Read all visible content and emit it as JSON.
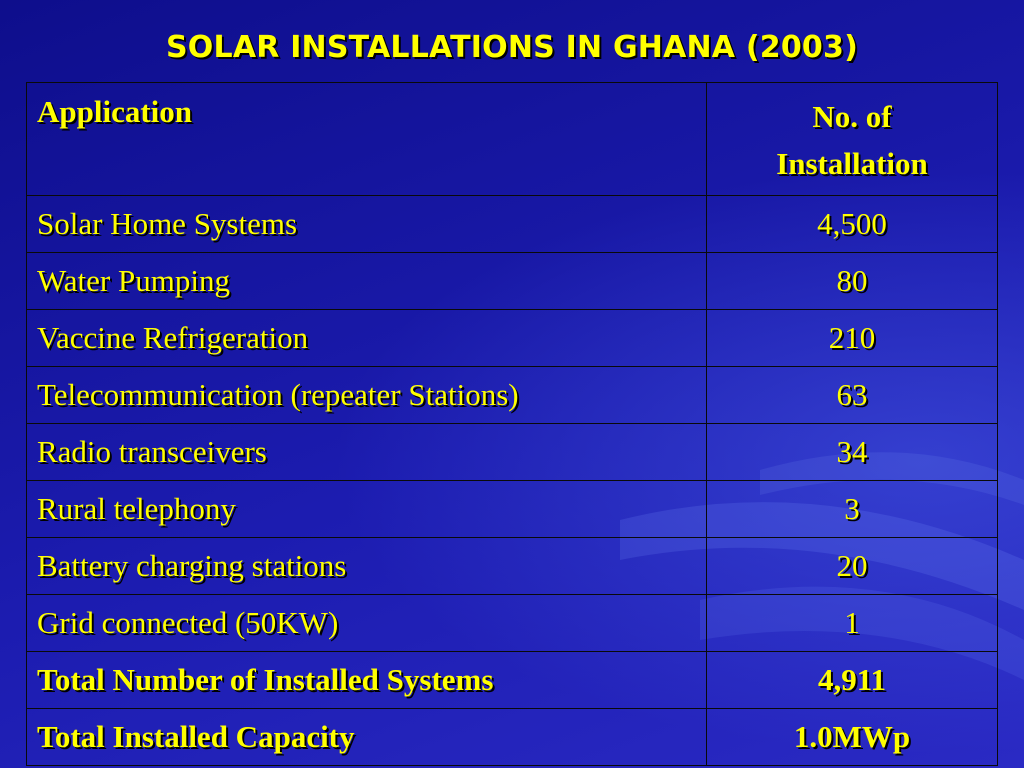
{
  "slide": {
    "title": "SOLAR INSTALLATIONS IN GHANA (2003)"
  },
  "table": {
    "header": {
      "application": "Application",
      "count_line1": "No. of",
      "count_line2": "Installation"
    },
    "rows": [
      {
        "application": "Solar Home Systems",
        "count": "4,500"
      },
      {
        "application": "Water Pumping",
        "count": "80"
      },
      {
        "application": "Vaccine Refrigeration",
        "count": "210"
      },
      {
        "application": "Telecommunication (repeater Stations)",
        "count": "63"
      },
      {
        "application": "Radio transceivers",
        "count": "34"
      },
      {
        "application": "Rural telephony",
        "count": "3"
      },
      {
        "application": "Battery charging stations",
        "count": "20"
      },
      {
        "application": "Grid connected (50KW)",
        "count": "1"
      }
    ],
    "totals": [
      {
        "label": "Total Number of  Installed Systems",
        "value": "4,911"
      },
      {
        "label": "Total Installed Capacity",
        "value": "1.0MWp"
      }
    ]
  },
  "colors": {
    "background": "#1a1aa0",
    "text": "#ffff00"
  }
}
